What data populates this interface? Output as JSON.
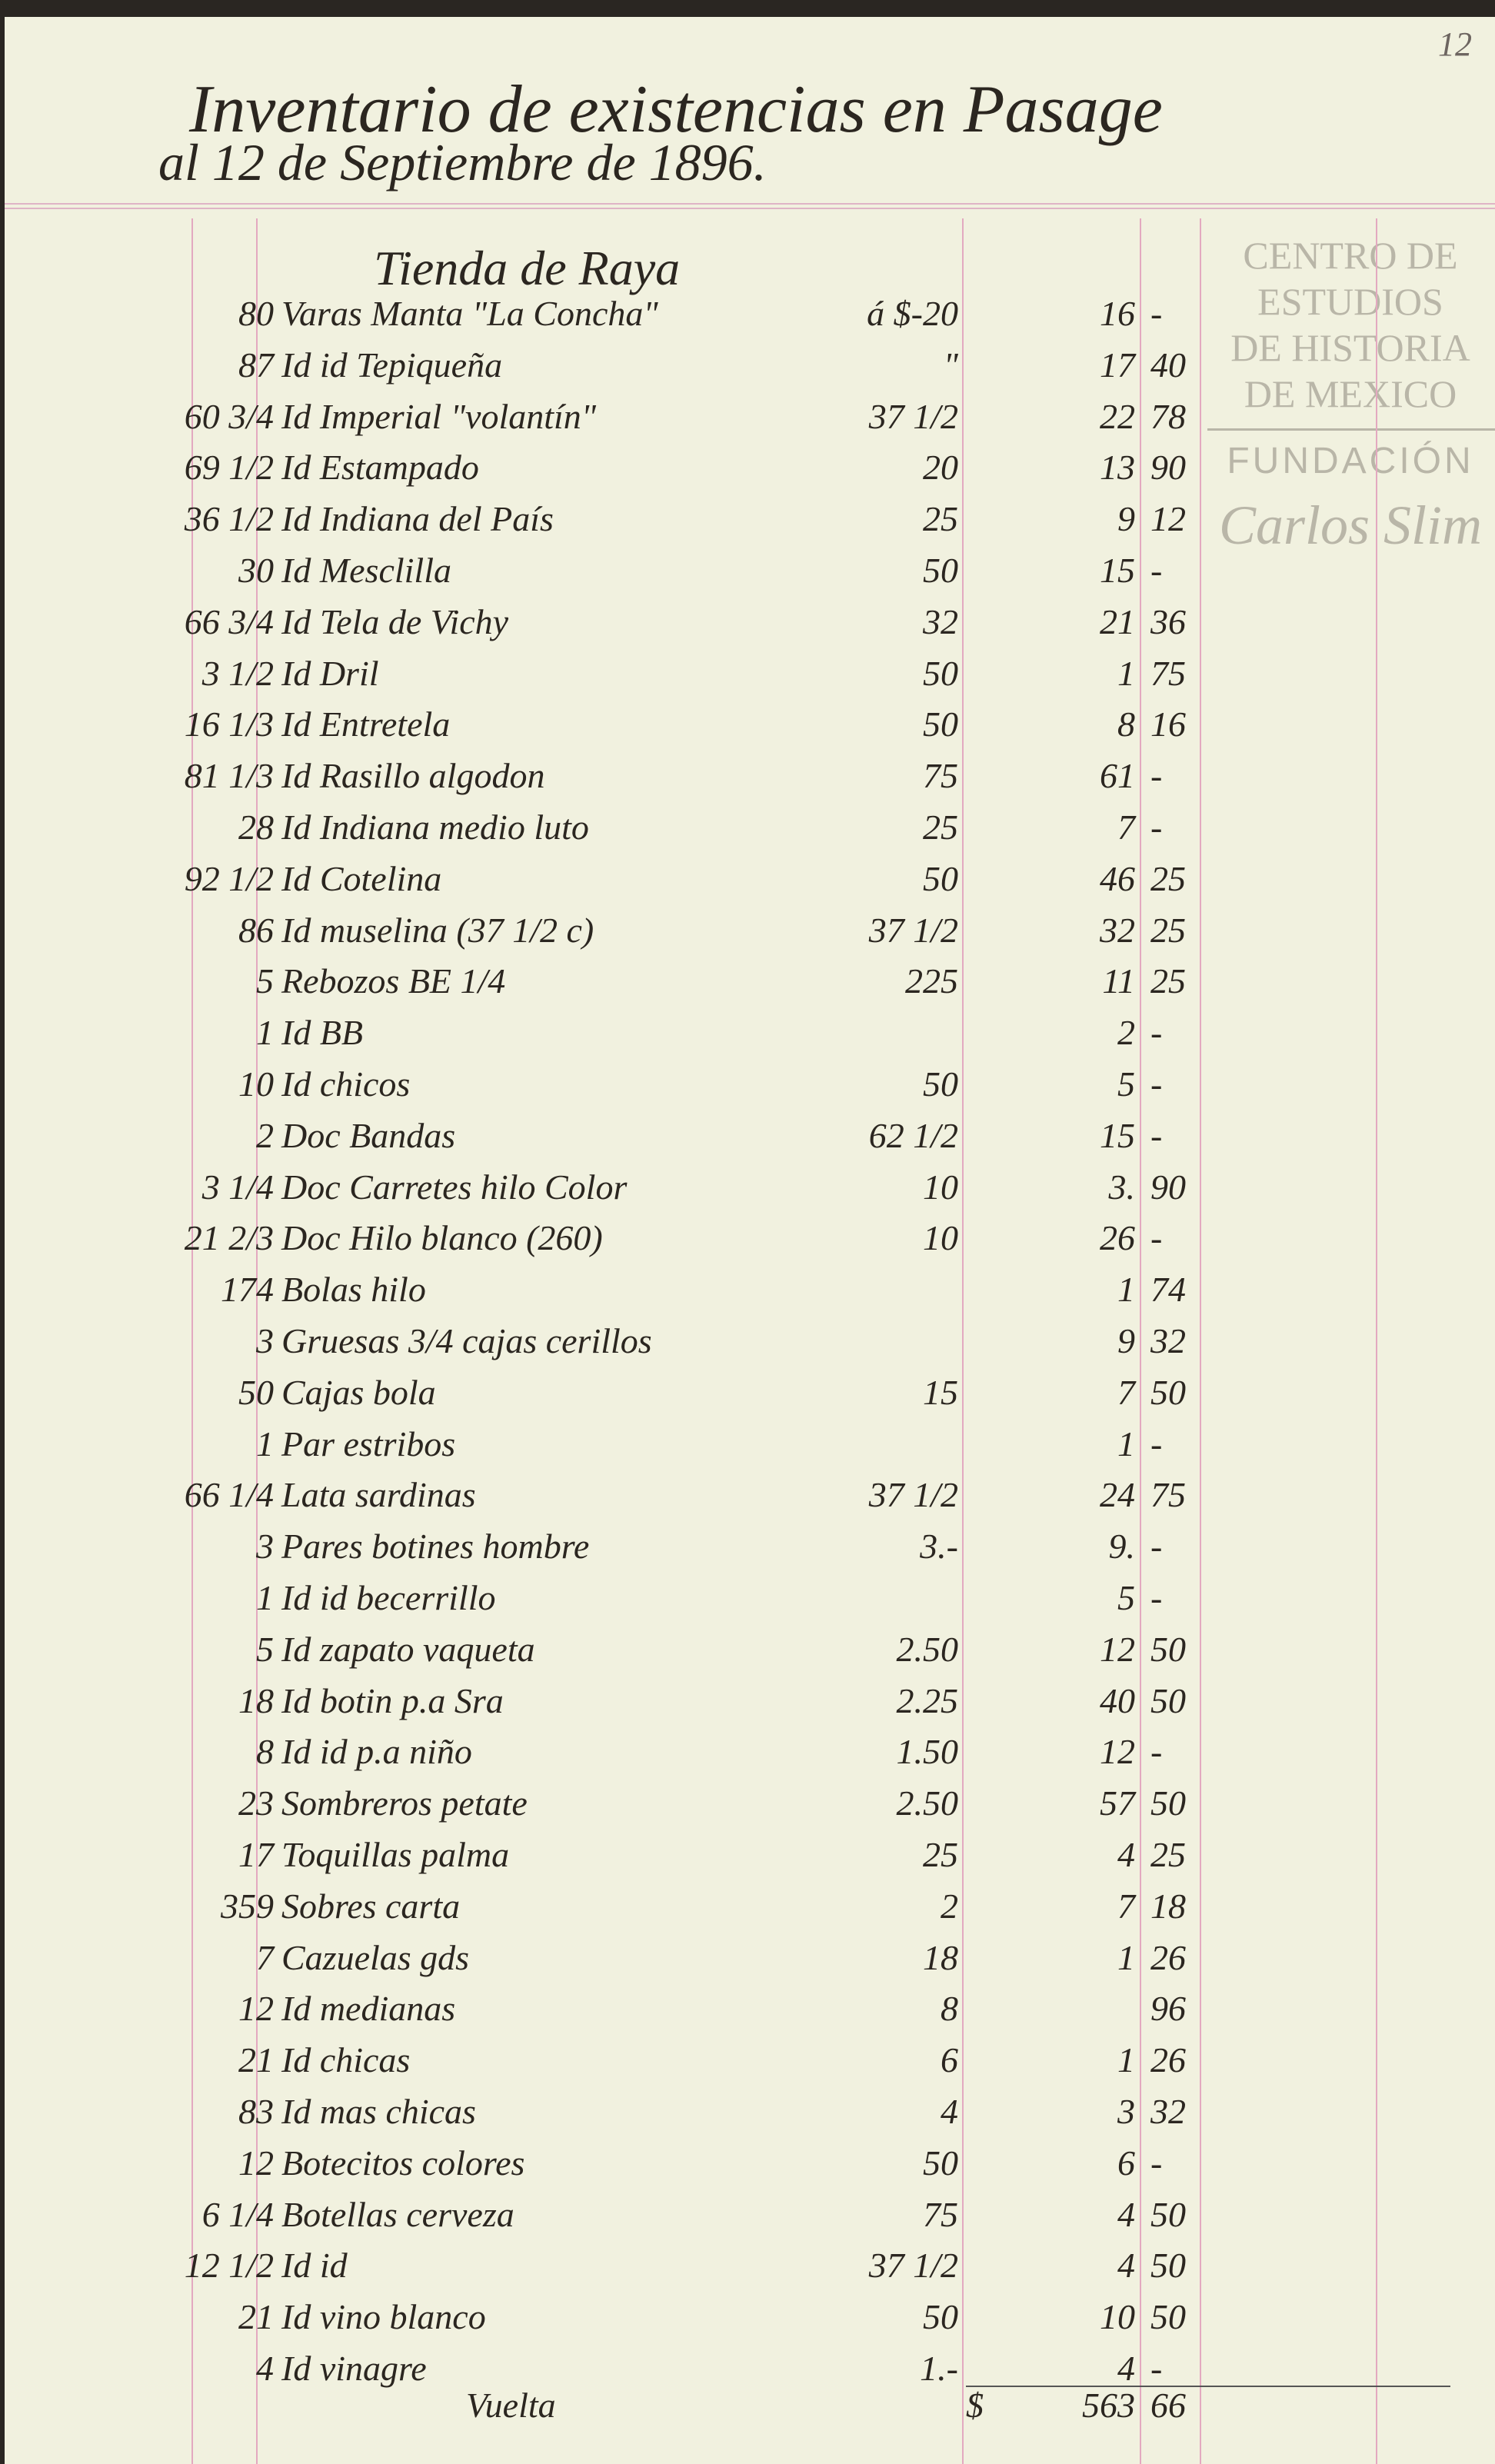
{
  "header": {
    "title": "Inventario de existencias en Pasage",
    "subtitle": "al 12 de Septiembre de 1896.",
    "page_number": "12"
  },
  "section": "Tienda de Raya",
  "watermark": {
    "line1": "CENTRO DE",
    "line2": "ESTUDIOS",
    "line3": "DE HISTORIA",
    "line4": "DE MEXICO",
    "line5": "FUNDACIÓN",
    "line6": "Carlos Slim"
  },
  "rows": [
    {
      "qty": "80",
      "desc": "Varas Manta \"La Concha\"",
      "price": "á $-20",
      "pesos": "16",
      "cents": "-"
    },
    {
      "qty": "87",
      "desc": "Id  id  Tepiqueña",
      "price": "\"",
      "pesos": "17",
      "cents": "40"
    },
    {
      "qty": "60 3/4",
      "desc": "Id Imperial \"volantín\"",
      "price": "37 1/2",
      "pesos": "22",
      "cents": "78"
    },
    {
      "qty": "69 1/2",
      "desc": "Id Estampado",
      "price": "20",
      "pesos": "13",
      "cents": "90"
    },
    {
      "qty": "36 1/2",
      "desc": "Id Indiana del País",
      "price": "25",
      "pesos": "9",
      "cents": "12"
    },
    {
      "qty": "30",
      "desc": "Id Mesclilla",
      "price": "50",
      "pesos": "15",
      "cents": "-"
    },
    {
      "qty": "66 3/4",
      "desc": "Id Tela de Vichy",
      "price": "32",
      "pesos": "21",
      "cents": "36"
    },
    {
      "qty": "3 1/2",
      "desc": "Id Dril",
      "price": "50",
      "pesos": "1",
      "cents": "75"
    },
    {
      "qty": "16 1/3",
      "desc": "Id Entretela",
      "price": "50",
      "pesos": "8",
      "cents": "16"
    },
    {
      "qty": "81 1/3",
      "desc": "Id Rasillo algodon",
      "price": "75",
      "pesos": "61",
      "cents": "-"
    },
    {
      "qty": "28",
      "desc": "Id Indiana medio luto",
      "price": "25",
      "pesos": "7",
      "cents": "-"
    },
    {
      "qty": "92 1/2",
      "desc": "Id Cotelina",
      "price": "50",
      "pesos": "46",
      "cents": "25"
    },
    {
      "qty": "86",
      "desc": "Id muselina (37 1/2 c)",
      "price": "37 1/2",
      "pesos": "32",
      "cents": "25"
    },
    {
      "qty": "5",
      "desc": "Rebozos BE 1/4",
      "price": "225",
      "pesos": "11",
      "cents": "25"
    },
    {
      "qty": "1",
      "desc": "Id      BB",
      "price": "",
      "pesos": "2",
      "cents": "-"
    },
    {
      "qty": "10",
      "desc": "Id   chicos",
      "price": "50",
      "pesos": "5",
      "cents": "-"
    },
    {
      "qty": "2",
      "desc": "Doc Bandas",
      "price": "62 1/2",
      "pesos": "15",
      "cents": "-"
    },
    {
      "qty": "3 1/4",
      "desc": "Doc Carretes hilo Color",
      "price": "10",
      "pesos": "3.",
      "cents": "90"
    },
    {
      "qty": "21 2/3",
      "desc": "Doc Hilo blanco (260)",
      "price": "10",
      "pesos": "26",
      "cents": "-"
    },
    {
      "qty": "174",
      "desc": "Bolas hilo",
      "price": "",
      "pesos": "1",
      "cents": "74"
    },
    {
      "qty": "3",
      "desc": "Gruesas 3/4 cajas cerillos",
      "price": "",
      "pesos": "9",
      "cents": "32"
    },
    {
      "qty": "50",
      "desc": "Cajas bola",
      "price": "15",
      "pesos": "7",
      "cents": "50"
    },
    {
      "qty": "1",
      "desc": "Par estribos",
      "price": "",
      "pesos": "1",
      "cents": "-"
    },
    {
      "qty": "66 1/4",
      "desc": "Lata sardinas",
      "price": "37 1/2",
      "pesos": "24",
      "cents": "75"
    },
    {
      "qty": "3",
      "desc": "Pares botines hombre",
      "price": "3.-",
      "pesos": "9.",
      "cents": "-"
    },
    {
      "qty": "1",
      "desc": "Id   id  becerrillo",
      "price": "",
      "pesos": "5",
      "cents": "-"
    },
    {
      "qty": "5",
      "desc": "Id  zapato vaqueta",
      "price": "2.50",
      "pesos": "12",
      "cents": "50"
    },
    {
      "qty": "18",
      "desc": "Id  botin p.a Sra",
      "price": "2.25",
      "pesos": "40",
      "cents": "50"
    },
    {
      "qty": "8",
      "desc": "Id   id  p.a niño",
      "price": "1.50",
      "pesos": "12",
      "cents": "-"
    },
    {
      "qty": "23",
      "desc": "Sombreros petate",
      "price": "2.50",
      "pesos": "57",
      "cents": "50"
    },
    {
      "qty": "17",
      "desc": "Toquillas palma",
      "price": "25",
      "pesos": "4",
      "cents": "25"
    },
    {
      "qty": "359",
      "desc": "Sobres carta",
      "price": "2",
      "pesos": "7",
      "cents": "18"
    },
    {
      "qty": "7",
      "desc": "Cazuelas gds",
      "price": "18",
      "pesos": "1",
      "cents": "26"
    },
    {
      "qty": "12",
      "desc": "Id   medianas",
      "price": "8",
      "pesos": "",
      "cents": "96"
    },
    {
      "qty": "21",
      "desc": "Id   chicas",
      "price": "6",
      "pesos": "1",
      "cents": "26"
    },
    {
      "qty": "83",
      "desc": "Id   mas chicas",
      "price": "4",
      "pesos": "3",
      "cents": "32"
    },
    {
      "qty": "12",
      "desc": "Botecitos colores",
      "price": "50",
      "pesos": "6",
      "cents": "-"
    },
    {
      "qty": "6 1/4",
      "desc": "Botellas cerveza",
      "price": "75",
      "pesos": "4",
      "cents": "50"
    },
    {
      "qty": "12 1/2",
      "desc": "Id      id",
      "price": "37 1/2",
      "pesos": "4",
      "cents": "50"
    },
    {
      "qty": "21",
      "desc": "Id  vino blanco",
      "price": "50",
      "pesos": "10",
      "cents": "50"
    },
    {
      "qty": "4",
      "desc": "Id  vinagre",
      "price": "1.-",
      "pesos": "4",
      "cents": "-"
    }
  ],
  "total": {
    "label": "Vuelta",
    "currency": "$",
    "pesos": "563",
    "cents": "66"
  }
}
